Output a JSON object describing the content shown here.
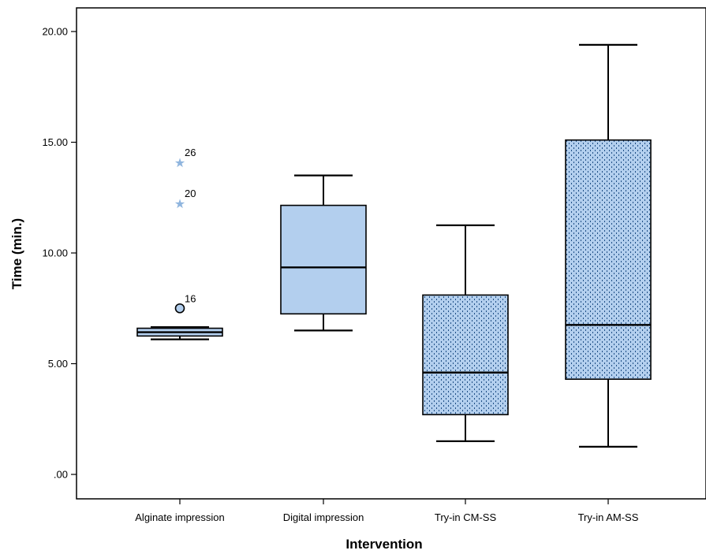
{
  "chart_data": {
    "type": "boxplot",
    "title": "",
    "xlabel": "Intervention",
    "ylabel": "Time (min.)",
    "ylim": [
      -1.1,
      22.5
    ],
    "yticks": [
      0,
      5,
      10,
      15,
      20
    ],
    "ytick_labels": [
      ".00",
      "5.00",
      "10.00",
      "15.00",
      "20.00"
    ],
    "grid": false,
    "colors": {
      "box_fill": "#b3cfee",
      "box_stroke": "#000000",
      "dot": "#1f4f86",
      "star": "#8fb5de",
      "outlier_fill": "#b3cfee"
    },
    "categories": [
      "Alginate impression",
      "Digital impression",
      "Try-in CM-SS",
      "Try-in AM-SS"
    ],
    "boxes": [
      {
        "category": "Alginate impression",
        "min": 6.1,
        "q1": 6.25,
        "median": 6.42,
        "q3": 6.6,
        "max": 6.65,
        "pattern": "plain",
        "outliers": [
          {
            "value": 7.5,
            "label": "16",
            "marker": "circle"
          },
          {
            "value": 12.25,
            "label": "20",
            "marker": "star"
          },
          {
            "value": 14.1,
            "label": "26",
            "marker": "star"
          }
        ]
      },
      {
        "category": "Digital impression",
        "min": 6.5,
        "q1": 7.25,
        "median": 9.35,
        "q3": 12.15,
        "max": 13.5,
        "pattern": "plain",
        "outliers": []
      },
      {
        "category": "Try-in CM-SS",
        "min": 1.5,
        "q1": 2.7,
        "median": 4.6,
        "q3": 8.1,
        "max": 11.25,
        "pattern": "dotted",
        "outliers": []
      },
      {
        "category": "Try-in AM-SS",
        "min": 1.25,
        "q1": 4.3,
        "median": 6.75,
        "q3": 15.1,
        "max": 19.4,
        "pattern": "dotted",
        "outliers": []
      }
    ]
  }
}
